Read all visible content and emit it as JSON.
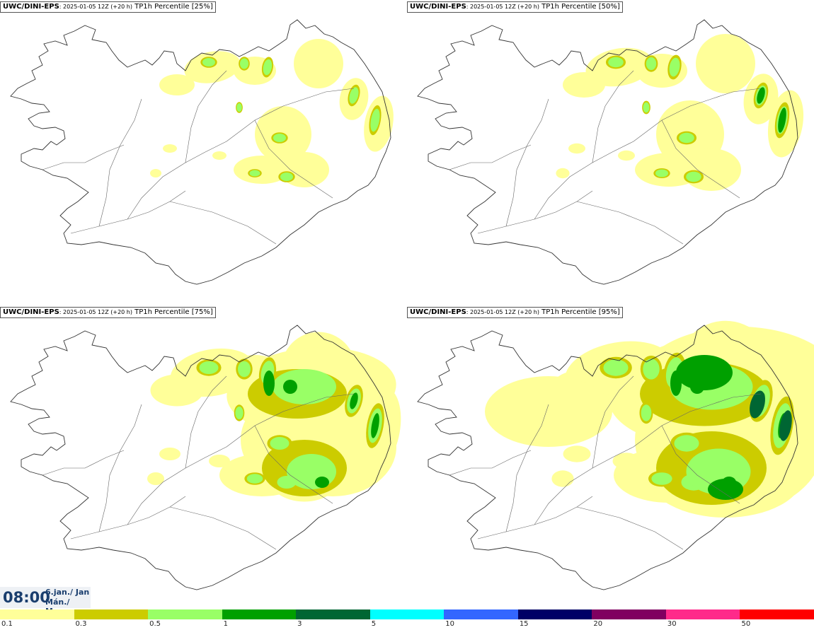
{
  "panels": [
    {
      "model": "UWC/DINI-EPS",
      "run": ": 2025-01-05 12Z (+20 h)",
      "field": " TP1h Percentile [25%]",
      "intensity": 1
    },
    {
      "model": "UWC/DINI-EPS",
      "run": ": 2025-01-05 12Z (+20 h)",
      "field": " TP1h Percentile [50%]",
      "intensity": 2
    },
    {
      "model": "UWC/DINI-EPS",
      "run": ": 2025-01-05 12Z (+20 h)",
      "field": " TP1h Percentile [75%]",
      "intensity": 3
    },
    {
      "model": "UWC/DINI-EPS",
      "run": ": 2025-01-05 12Z (+20 h)",
      "field": " TP1h Percentile [95%]",
      "intensity": 4
    }
  ],
  "time": {
    "clock": "08:00",
    "date_is": "6.jan./ Jan",
    "day_is": "Mán./ Mon"
  },
  "legend": {
    "labels": [
      "0.1",
      "0.3",
      "0.5",
      "1",
      "3",
      "5",
      "10",
      "15",
      "20",
      "30",
      "50"
    ],
    "colors": [
      "#ffff99",
      "#cccc00",
      "#99ff66",
      "#00a000",
      "#006633",
      "#00ffff",
      "#3366ff",
      "#000066",
      "#800060",
      "#ff2a8a",
      "#ff0000"
    ]
  }
}
